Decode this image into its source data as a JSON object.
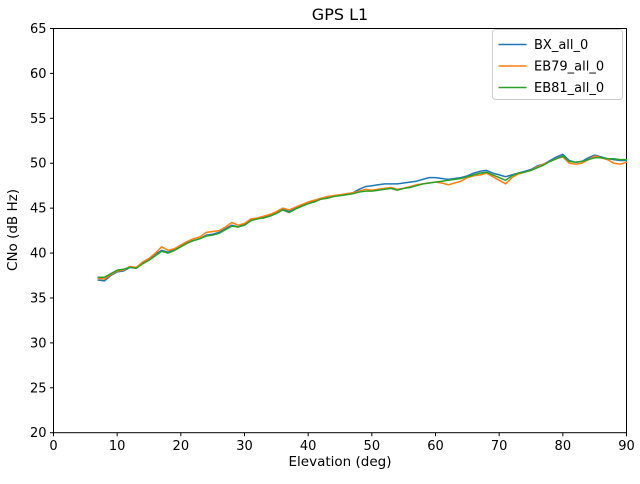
{
  "chart_data": {
    "type": "line",
    "title": "GPS L1",
    "xlabel": "Elevation (deg)",
    "ylabel": "CNo (dB Hz)",
    "xlim": [
      0,
      90
    ],
    "ylim": [
      20,
      65
    ],
    "xticks": [
      0,
      10,
      20,
      30,
      40,
      50,
      60,
      70,
      80,
      90
    ],
    "yticks": [
      20,
      25,
      30,
      35,
      40,
      45,
      50,
      55,
      60,
      65
    ],
    "grid": false,
    "legend_position": "upper right",
    "x": [
      7,
      8,
      9,
      10,
      11,
      12,
      13,
      14,
      15,
      16,
      17,
      18,
      19,
      20,
      21,
      22,
      23,
      24,
      25,
      26,
      27,
      28,
      29,
      30,
      31,
      32,
      33,
      34,
      35,
      36,
      37,
      38,
      39,
      40,
      41,
      42,
      43,
      44,
      45,
      46,
      47,
      48,
      49,
      50,
      51,
      52,
      53,
      54,
      55,
      56,
      57,
      58,
      59,
      60,
      61,
      62,
      63,
      64,
      65,
      66,
      67,
      68,
      69,
      70,
      71,
      72,
      73,
      74,
      75,
      76,
      77,
      78,
      79,
      80,
      81,
      82,
      83,
      84,
      85,
      86,
      87,
      88,
      89,
      90
    ],
    "series": [
      {
        "name": "BX_all_0",
        "color": "#1f77b4",
        "values": [
          37.0,
          36.9,
          37.5,
          37.9,
          38.0,
          38.4,
          38.3,
          38.9,
          39.3,
          39.9,
          40.3,
          40.1,
          40.4,
          40.8,
          41.2,
          41.4,
          41.6,
          42.0,
          42.1,
          42.3,
          42.7,
          43.1,
          42.9,
          43.2,
          43.7,
          43.8,
          44.0,
          44.2,
          44.5,
          44.9,
          44.6,
          45.0,
          45.3,
          45.5,
          45.8,
          46.1,
          46.2,
          46.4,
          46.4,
          46.6,
          46.7,
          47.1,
          47.4,
          47.5,
          47.6,
          47.7,
          47.7,
          47.7,
          47.8,
          47.9,
          48.0,
          48.2,
          48.4,
          48.4,
          48.3,
          48.2,
          48.3,
          48.4,
          48.6,
          48.9,
          49.1,
          49.2,
          48.9,
          48.7,
          48.5,
          48.7,
          48.9,
          49.1,
          49.3,
          49.7,
          49.9,
          50.3,
          50.7,
          51.0,
          50.3,
          50.1,
          50.2,
          50.6,
          50.9,
          50.7,
          50.5,
          50.4,
          50.3,
          50.3
        ]
      },
      {
        "name": "EB79_all_0",
        "color": "#ff7f0e",
        "values": [
          37.2,
          37.1,
          37.6,
          38.0,
          38.1,
          38.5,
          38.4,
          39.0,
          39.4,
          40.0,
          40.7,
          40.3,
          40.5,
          40.9,
          41.3,
          41.6,
          41.8,
          42.3,
          42.4,
          42.5,
          42.9,
          43.4,
          43.1,
          43.3,
          43.8,
          43.9,
          44.1,
          44.3,
          44.6,
          45.0,
          44.8,
          45.1,
          45.4,
          45.7,
          45.9,
          46.1,
          46.3,
          46.4,
          46.5,
          46.6,
          46.7,
          46.9,
          47.1,
          47.0,
          47.1,
          47.2,
          47.3,
          47.1,
          47.2,
          47.4,
          47.6,
          47.7,
          47.8,
          47.9,
          47.8,
          47.6,
          47.8,
          48.0,
          48.4,
          48.6,
          48.7,
          48.9,
          48.5,
          48.1,
          47.7,
          48.4,
          48.8,
          49.0,
          49.2,
          49.6,
          49.9,
          50.2,
          50.5,
          50.7,
          50.0,
          49.9,
          50.0,
          50.4,
          50.8,
          50.6,
          50.4,
          50.0,
          49.9,
          50.1
        ]
      },
      {
        "name": "EB81_all_0",
        "color": "#2ca02c",
        "values": [
          37.3,
          37.3,
          37.7,
          38.1,
          38.2,
          38.4,
          38.3,
          38.8,
          39.2,
          39.7,
          40.2,
          40.0,
          40.3,
          40.7,
          41.1,
          41.4,
          41.6,
          41.9,
          42.0,
          42.2,
          42.6,
          43.0,
          42.9,
          43.1,
          43.6,
          43.8,
          43.9,
          44.1,
          44.4,
          44.8,
          44.5,
          44.9,
          45.2,
          45.5,
          45.7,
          46.0,
          46.1,
          46.3,
          46.4,
          46.5,
          46.6,
          46.8,
          46.9,
          46.9,
          47.0,
          47.1,
          47.2,
          47.0,
          47.2,
          47.3,
          47.5,
          47.7,
          47.8,
          47.9,
          48.0,
          48.1,
          48.2,
          48.3,
          48.5,
          48.7,
          48.9,
          49.0,
          48.7,
          48.4,
          48.1,
          48.6,
          48.9,
          49.0,
          49.2,
          49.5,
          49.8,
          50.2,
          50.5,
          50.8,
          50.2,
          50.1,
          50.2,
          50.4,
          50.6,
          50.6,
          50.5,
          50.5,
          50.4,
          50.4
        ]
      }
    ]
  }
}
